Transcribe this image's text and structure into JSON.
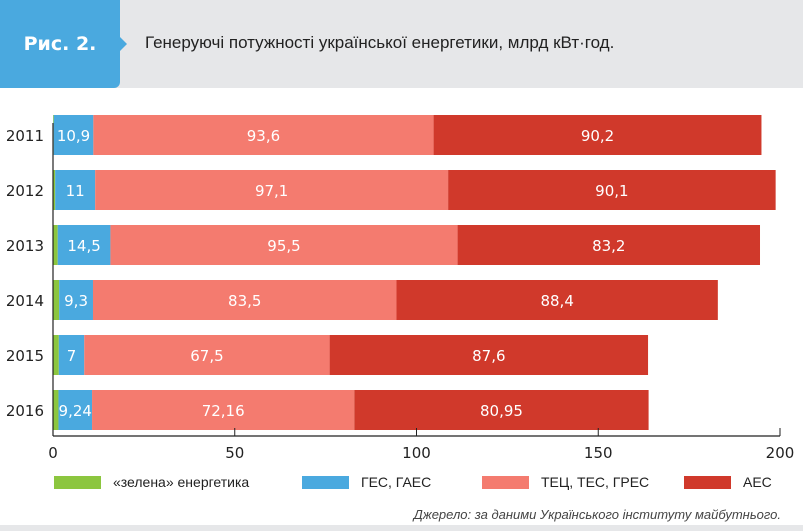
{
  "chart_data": {
    "type": "bar",
    "orientation": "horizontal",
    "stacked": true,
    "figure_label": "Рис. 2.",
    "title": "Генеруючі потужності української енергетики, млрд кВт·год.",
    "categories": [
      "2011",
      "2012",
      "2013",
      "2014",
      "2015",
      "2016"
    ],
    "series": [
      {
        "name": "«зелена» енергетика",
        "color": "#8cc63f",
        "values": [
          0.2,
          0.6,
          1.3,
          1.7,
          1.6,
          1.5
        ],
        "labels": [
          "",
          "",
          "",
          "",
          "",
          ""
        ]
      },
      {
        "name": "ГЕС, ГАЕС",
        "color": "#4aa9df",
        "values": [
          10.9,
          11,
          14.5,
          9.3,
          7,
          9.24
        ],
        "labels": [
          "10,9",
          "11",
          "14,5",
          "9,3",
          "7",
          "9,24"
        ]
      },
      {
        "name": "ТЕЦ, ТЕС, ГРЕС",
        "color": "#f47b6f",
        "values": [
          93.6,
          97.1,
          95.5,
          83.5,
          67.5,
          72.16
        ],
        "labels": [
          "93,6",
          "97,1",
          "95,5",
          "83,5",
          "67,5",
          "72,16"
        ]
      },
      {
        "name": "АЕС",
        "color": "#d0392b",
        "values": [
          90.2,
          90.1,
          83.2,
          88.4,
          87.6,
          80.95
        ],
        "labels": [
          "90,2",
          "90,1",
          "83,2",
          "88,4",
          "87,6",
          "80,95"
        ]
      }
    ],
    "xlim": [
      0,
      200
    ],
    "xticks": [
      "0",
      "50",
      "100",
      "150",
      "200"
    ],
    "legend": "bottom",
    "source": "Джерело: за даними Українського інституту майбутнього."
  }
}
